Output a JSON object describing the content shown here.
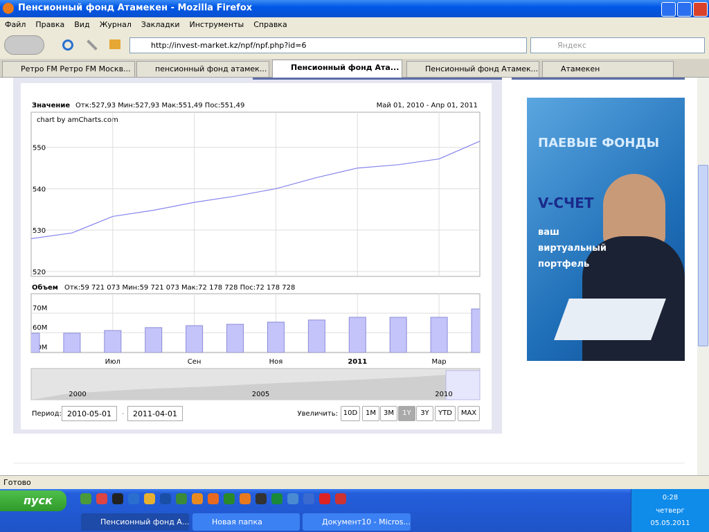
{
  "window": {
    "title": "Пенсионный фонд Атамекен - Mozilla Firefox"
  },
  "menu": [
    "Файл",
    "Правка",
    "Вид",
    "Журнал",
    "Закладки",
    "Инструменты",
    "Справка"
  ],
  "address": {
    "url": "http://invest-market.kz/npf/npf.php?id=6",
    "search_placeholder": "Яндекс"
  },
  "tabs": [
    "Ретро FM Ретро FM Москв...",
    "пенсионный фонд атамек...",
    "Пенсионный фонд Ата...",
    "Пенсионный фонд Атамек...",
    "Атамекен"
  ],
  "stock_chart": {
    "price": {
      "label": "Значение",
      "stats": "Отк:527,93 Мин:527,93 Мак:551,49 Пос:551,49",
      "date_range": "Май 01, 2010 - Апр 01, 2011",
      "credit": "chart by amCharts.com",
      "ylim": [
        518.8,
        558.5
      ],
      "yticks": [
        520,
        530,
        540,
        550
      ],
      "values": [
        527.93,
        529.3,
        533.3,
        534.8,
        536.7,
        538.2,
        540.0,
        542.7,
        545.0,
        545.8,
        547.2,
        551.49
      ],
      "color": "#8585ee"
    },
    "volume": {
      "label": "Объем",
      "stats": "Отк:59 721 073 Мин:59 721 073 Мак:72 178 728 Пос:72 178 728",
      "ylim": [
        49750000,
        80000000
      ],
      "yticks": [
        {
          "value": 50000000,
          "label": "50M"
        },
        {
          "value": 60000000,
          "label": "60M"
        },
        {
          "value": 70000000,
          "label": "70M"
        }
      ],
      "values": [
        59721073,
        59721073,
        61100000,
        62600000,
        63600000,
        64300000,
        65400000,
        66500000,
        67900000,
        67900000,
        67900000,
        72178728
      ],
      "color": "#c4c4fa"
    },
    "months": [
      null,
      null,
      "Июл",
      null,
      "Сен",
      null,
      "Ноя",
      null,
      "2011",
      null,
      "Мар",
      null
    ],
    "navigator_labels": [
      "2000",
      "2005",
      "2010"
    ],
    "period": {
      "label": "Период:",
      "from": "2010-05-01",
      "to": "2011-04-01"
    },
    "zoom": {
      "label": "Увеличить:",
      "buttons": [
        "10D",
        "1M",
        "3M",
        "1Y",
        "3Y",
        "YTD",
        "MAX"
      ],
      "selected": "1Y"
    }
  },
  "ad": {
    "heading": "ПАЕВЫЕ ФОНДЫ",
    "product": "V-СЧЕТ",
    "lines": [
      "ваш",
      "виртуальный",
      "портфель"
    ]
  },
  "status": "Готово",
  "taskbar": {
    "start": "пуск",
    "tasks": [
      "Пенсионный фонд А...",
      "Новая папка",
      "Документ10 - Micros..."
    ],
    "clock": {
      "time": "0:28",
      "day": "четверг",
      "date": "05.05.2011"
    }
  }
}
